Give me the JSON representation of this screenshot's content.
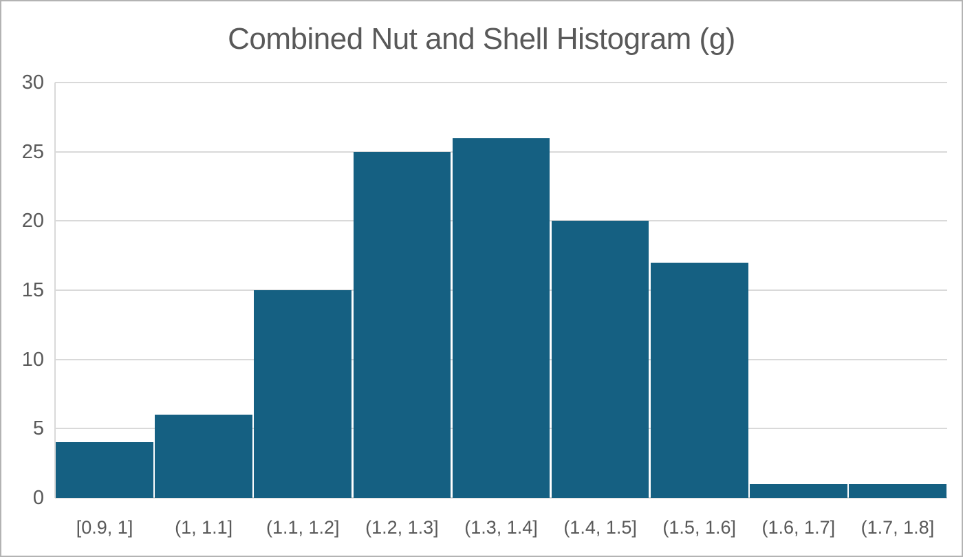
{
  "chart_data": {
    "type": "bar",
    "subtype": "histogram",
    "title": "Combined Nut and Shell Histogram (g)",
    "categories": [
      "[0.9, 1]",
      "(1, 1.1]",
      "(1.1, 1.2]",
      "(1.2, 1.3]",
      "(1.3, 1.4]",
      "(1.4, 1.5]",
      "(1.5, 1.6]",
      "(1.6, 1.7]",
      "(1.7, 1.8]"
    ],
    "values": [
      4,
      6,
      15,
      25,
      26,
      20,
      17,
      1,
      1
    ],
    "xlabel": "",
    "ylabel": "",
    "ylim": [
      0,
      30
    ],
    "yticks": [
      0,
      5,
      10,
      15,
      20,
      25,
      30
    ],
    "grid": true,
    "legend": false,
    "colors": {
      "bar_fill": "#156082",
      "gridline": "#d9d9d9",
      "axis_label": "#595959",
      "title": "#595959",
      "outer_border": "#b3b3b3",
      "background": "#ffffff"
    }
  }
}
